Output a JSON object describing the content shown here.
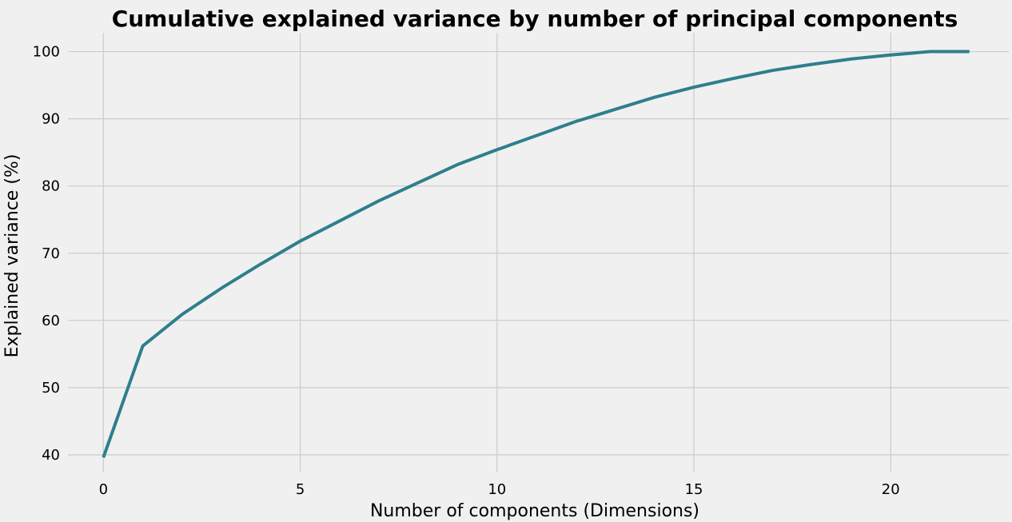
{
  "chart_data": {
    "type": "line",
    "title": "Cumulative explained variance by number of principal components",
    "xlabel": "Number of components (Dimensions)",
    "ylabel": "Explained variance (%)",
    "xlim": [
      -0.9,
      23.0
    ],
    "ylim": [
      37.5,
      102.8
    ],
    "xticks": [
      0,
      5,
      10,
      15,
      20
    ],
    "yticks": [
      40,
      50,
      60,
      70,
      80,
      90,
      100
    ],
    "grid": true,
    "line_color": "#2e7f8c",
    "background_color": "#f0f0f0",
    "x": [
      0,
      1,
      2,
      3,
      4,
      5,
      6,
      7,
      8,
      9,
      10,
      11,
      12,
      13,
      14,
      15,
      16,
      17,
      18,
      19,
      20,
      21,
      22
    ],
    "series": [
      {
        "values": [
          39.6,
          56.2,
          60.9,
          64.8,
          68.4,
          71.8,
          74.8,
          77.8,
          80.5,
          83.2,
          85.4,
          87.5,
          89.6,
          91.4,
          93.2,
          94.7,
          96.0,
          97.2,
          98.1,
          98.9,
          99.5,
          100.0,
          100.0
        ]
      }
    ]
  }
}
